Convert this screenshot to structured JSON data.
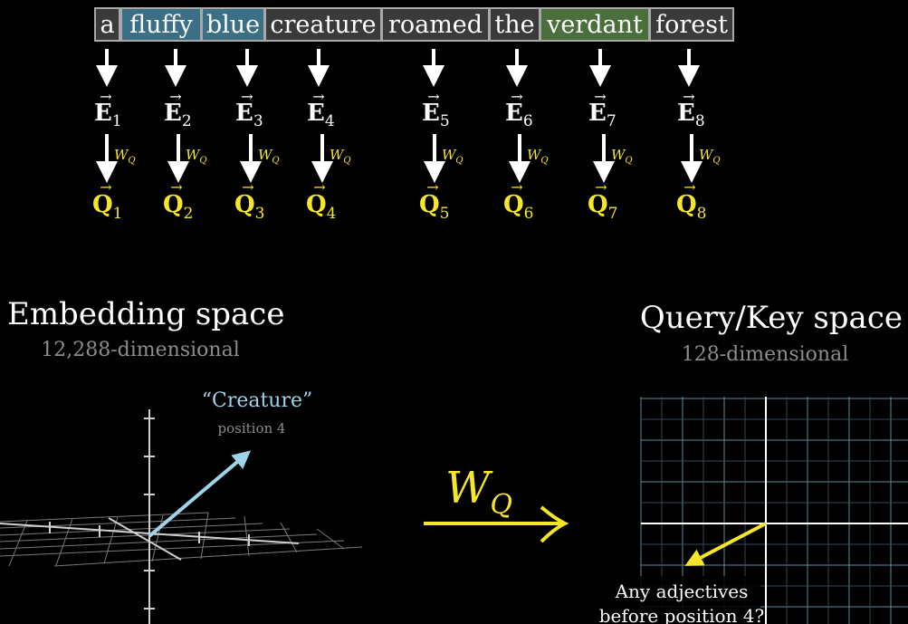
{
  "tokens": [
    {
      "text": "a",
      "color": "#3a3a3a"
    },
    {
      "text": "fluffy",
      "color": "#3a6f86"
    },
    {
      "text": "blue",
      "color": "#3a6f86"
    },
    {
      "text": "creature",
      "color": "#3a3a3a"
    },
    {
      "text": "roamed",
      "color": "#3a3a3a"
    },
    {
      "text": "the",
      "color": "#3a3a3a"
    },
    {
      "text": "verdant",
      "color": "#4a6e3c"
    },
    {
      "text": "forest",
      "color": "#3a3a3a"
    }
  ],
  "embeddings": [
    {
      "symbol": "E",
      "index": "1"
    },
    {
      "symbol": "E",
      "index": "2"
    },
    {
      "symbol": "E",
      "index": "3"
    },
    {
      "symbol": "E",
      "index": "4"
    },
    {
      "symbol": "E",
      "index": "5"
    },
    {
      "symbol": "E",
      "index": "6"
    },
    {
      "symbol": "E",
      "index": "7"
    },
    {
      "symbol": "E",
      "index": "8"
    }
  ],
  "queries": [
    {
      "symbol": "Q",
      "index": "1"
    },
    {
      "symbol": "Q",
      "index": "2"
    },
    {
      "symbol": "Q",
      "index": "3"
    },
    {
      "symbol": "Q",
      "index": "4"
    },
    {
      "symbol": "Q",
      "index": "5"
    },
    {
      "symbol": "Q",
      "index": "6"
    },
    {
      "symbol": "Q",
      "index": "7"
    },
    {
      "symbol": "Q",
      "index": "8"
    }
  ],
  "matrix": {
    "symbol": "W",
    "sub": "Q"
  },
  "embedding_space": {
    "title": "Embedding space",
    "subtitle": "12,288-dimensional"
  },
  "query_space": {
    "title": "Query/Key space",
    "subtitle": "128-dimensional"
  },
  "creature_label": {
    "word": "“Creature”",
    "position": "position 4"
  },
  "question": {
    "line1": "Any adjectives",
    "line2": "before position 4?"
  },
  "colors": {
    "background": "#000000",
    "query_yellow": "#f5e628",
    "vector_blue": "#9fd3ea",
    "grid": "#5a8a99",
    "muted_text": "#8c8c8c",
    "token_border": "#a8a8a8"
  }
}
